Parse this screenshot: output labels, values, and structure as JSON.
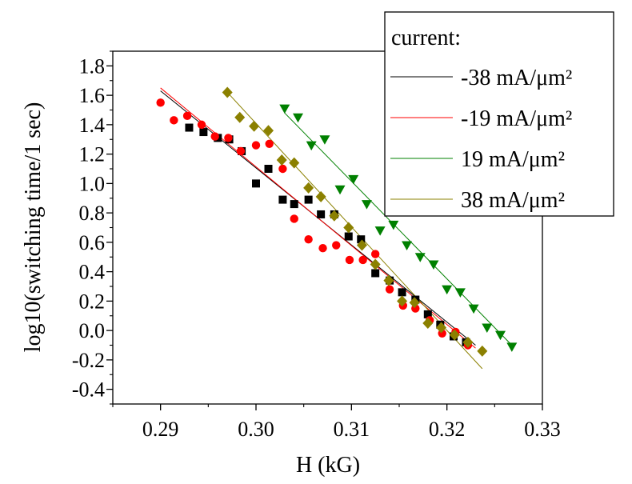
{
  "chart_data": {
    "type": "scatter",
    "xlabel": "H (kG)",
    "ylabel": "log10(switching time/1 sec)",
    "xlim": [
      0.285,
      0.33
    ],
    "ylim": [
      -0.5,
      1.9
    ],
    "xticks": [
      "0.29",
      "0.30",
      "0.31",
      "0.32",
      "0.33"
    ],
    "yticks": [
      "-0.4",
      "-0.2",
      "0.0",
      "0.2",
      "0.4",
      "0.6",
      "0.8",
      "1.0",
      "1.2",
      "1.4",
      "1.6",
      "1.8"
    ],
    "grid": false,
    "legend": {
      "title": "current:",
      "placement": "top-right",
      "entries": [
        "-38 mA/μm²",
        "-19 mA/μm²",
        "19 mA/μm²",
        "38 mA/μm²"
      ]
    },
    "series": [
      {
        "name": "-38 mA/μm²",
        "color": "#000000",
        "marker": "square",
        "x": [
          0.293,
          0.2945,
          0.296,
          0.2972,
          0.2985,
          0.3,
          0.3013,
          0.3028,
          0.304,
          0.3055,
          0.3068,
          0.3082,
          0.3097,
          0.311,
          0.3125,
          0.314,
          0.3153,
          0.3167,
          0.318,
          0.3193,
          0.3207,
          0.322
        ],
        "y": [
          1.38,
          1.35,
          1.31,
          1.3,
          1.22,
          1.0,
          1.1,
          0.89,
          0.86,
          0.89,
          0.79,
          0.79,
          0.64,
          0.62,
          0.39,
          0.34,
          0.26,
          0.21,
          0.11,
          0.04,
          -0.04,
          -0.08
        ],
        "fit": {
          "x": [
            0.29,
            0.323
          ],
          "y": [
            1.63,
            -0.1
          ]
        }
      },
      {
        "name": "-19 mA/μm²",
        "color": "#ff0000",
        "marker": "circle",
        "x": [
          0.29,
          0.2914,
          0.2928,
          0.2943,
          0.2957,
          0.2971,
          0.2984,
          0.3,
          0.3014,
          0.3028,
          0.304,
          0.3055,
          0.307,
          0.3084,
          0.3098,
          0.3112,
          0.3125,
          0.314,
          0.3154,
          0.3167,
          0.3182,
          0.3195,
          0.3209,
          0.3222
        ],
        "y": [
          1.55,
          1.43,
          1.46,
          1.4,
          1.32,
          1.31,
          1.22,
          1.26,
          1.27,
          1.1,
          0.76,
          0.62,
          0.56,
          0.58,
          0.48,
          0.48,
          0.52,
          0.28,
          0.17,
          0.15,
          0.07,
          -0.02,
          -0.01,
          -0.1
        ],
        "fit": {
          "x": [
            0.29,
            0.323
          ],
          "y": [
            1.65,
            -0.12
          ]
        }
      },
      {
        "name": "19 mA/μm²",
        "color": "#008000",
        "marker": "triangle-down",
        "x": [
          0.303,
          0.3044,
          0.3058,
          0.3072,
          0.3088,
          0.3102,
          0.3116,
          0.313,
          0.3144,
          0.3158,
          0.3172,
          0.3186,
          0.32,
          0.3214,
          0.3228,
          0.3242,
          0.3256,
          0.3268
        ],
        "y": [
          1.51,
          1.45,
          1.26,
          1.3,
          0.96,
          1.03,
          0.86,
          0.68,
          0.72,
          0.58,
          0.5,
          0.45,
          0.28,
          0.26,
          0.15,
          0.02,
          -0.03,
          -0.11
        ],
        "fit": {
          "x": [
            0.303,
            0.3268
          ],
          "y": [
            1.48,
            -0.1
          ]
        }
      },
      {
        "name": "38 mA/μm²",
        "color": "#8b8000",
        "marker": "diamond",
        "x": [
          0.297,
          0.2983,
          0.2998,
          0.3013,
          0.3027,
          0.304,
          0.3055,
          0.3068,
          0.3082,
          0.3097,
          0.3111,
          0.3125,
          0.3139,
          0.3153,
          0.3166,
          0.318,
          0.3194,
          0.3208,
          0.3222,
          0.3237
        ],
        "y": [
          1.62,
          1.45,
          1.39,
          1.36,
          1.16,
          1.14,
          0.97,
          0.91,
          0.78,
          0.7,
          0.58,
          0.45,
          0.34,
          0.2,
          0.19,
          0.05,
          0.02,
          -0.03,
          -0.08,
          -0.14
        ],
        "fit": {
          "x": [
            0.297,
            0.3237
          ],
          "y": [
            1.62,
            -0.26
          ]
        }
      }
    ]
  }
}
